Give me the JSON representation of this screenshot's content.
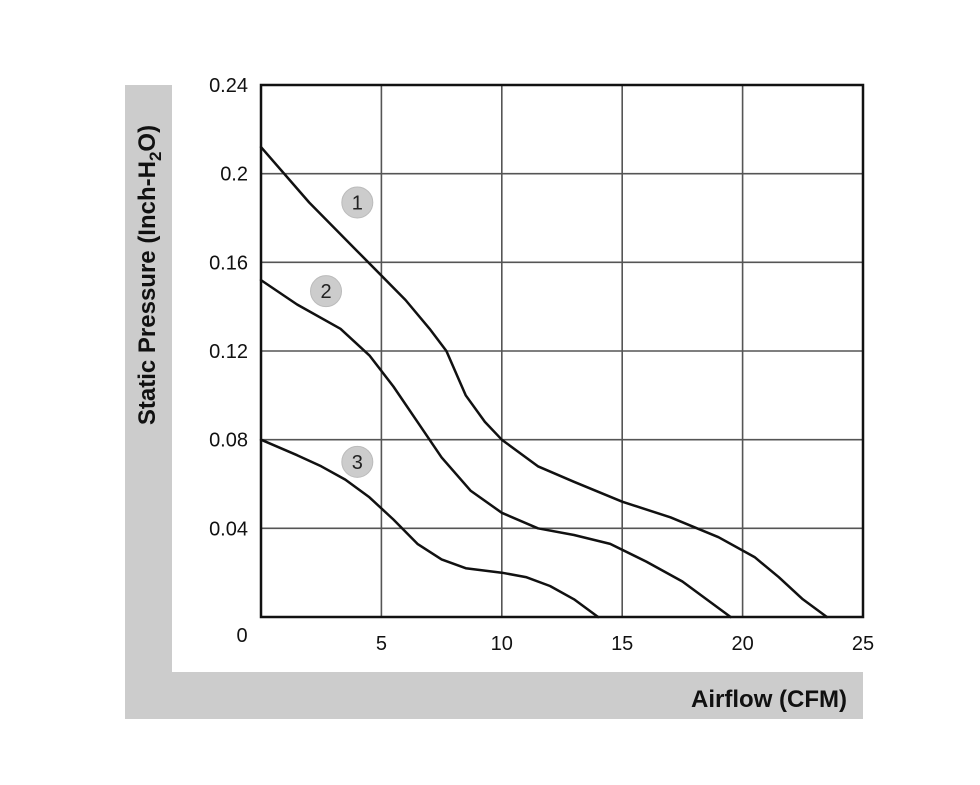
{
  "chart_data": {
    "type": "line",
    "title": "",
    "xlabel": "Airflow (CFM)",
    "ylabel_parts": {
      "before": "Static Pressure (Inch-H",
      "sub": "2",
      "after": "O)"
    },
    "xlim": [
      0,
      25
    ],
    "ylim": [
      0,
      0.24
    ],
    "grid": true,
    "x_ticks": [
      {
        "value": 5,
        "label": "5"
      },
      {
        "value": 10,
        "label": "10"
      },
      {
        "value": 15,
        "label": "15"
      },
      {
        "value": 20,
        "label": "20"
      },
      {
        "value": 25,
        "label": "25"
      }
    ],
    "y_ticks": [
      {
        "value": 0,
        "label": "0"
      },
      {
        "value": 0.04,
        "label": "0.04"
      },
      {
        "value": 0.08,
        "label": "0.08"
      },
      {
        "value": 0.12,
        "label": "0.12"
      },
      {
        "value": 0.16,
        "label": "0.16"
      },
      {
        "value": 0.2,
        "label": "0.2"
      },
      {
        "value": 0.24,
        "label": "0.24"
      }
    ],
    "series": [
      {
        "marker": "1",
        "marker_at": [
          4.0,
          0.187
        ],
        "points": [
          [
            0,
            0.212
          ],
          [
            2,
            0.187
          ],
          [
            4,
            0.165
          ],
          [
            6,
            0.143
          ],
          [
            7,
            0.13
          ],
          [
            7.7,
            0.12
          ],
          [
            8.5,
            0.1
          ],
          [
            9.3,
            0.088
          ],
          [
            10,
            0.08
          ],
          [
            11.5,
            0.068
          ],
          [
            13,
            0.061
          ],
          [
            15,
            0.052
          ],
          [
            17,
            0.045
          ],
          [
            19,
            0.036
          ],
          [
            20.5,
            0.027
          ],
          [
            21.5,
            0.018
          ],
          [
            22.5,
            0.008
          ],
          [
            23.5,
            0
          ]
        ]
      },
      {
        "marker": "2",
        "marker_at": [
          2.7,
          0.147
        ],
        "points": [
          [
            0,
            0.152
          ],
          [
            1.5,
            0.141
          ],
          [
            3.3,
            0.13
          ],
          [
            4.5,
            0.118
          ],
          [
            5.5,
            0.104
          ],
          [
            6.5,
            0.088
          ],
          [
            7.5,
            0.072
          ],
          [
            8.7,
            0.057
          ],
          [
            10,
            0.047
          ],
          [
            11.5,
            0.04
          ],
          [
            13,
            0.037
          ],
          [
            14.5,
            0.033
          ],
          [
            16,
            0.025
          ],
          [
            17.5,
            0.016
          ],
          [
            18.5,
            0.008
          ],
          [
            19.5,
            0
          ]
        ]
      },
      {
        "marker": "3",
        "marker_at": [
          4.0,
          0.07
        ],
        "points": [
          [
            0,
            0.08
          ],
          [
            1.5,
            0.073
          ],
          [
            2.5,
            0.068
          ],
          [
            3.5,
            0.062
          ],
          [
            4.5,
            0.054
          ],
          [
            5.5,
            0.044
          ],
          [
            6.5,
            0.033
          ],
          [
            7.5,
            0.026
          ],
          [
            8.5,
            0.022
          ],
          [
            10,
            0.02
          ],
          [
            11,
            0.018
          ],
          [
            12,
            0.014
          ],
          [
            13,
            0.008
          ],
          [
            14,
            0
          ]
        ]
      }
    ],
    "colors": {
      "curve": "#111111",
      "grid": "#555555",
      "frame": "#111111",
      "axis_band": "#cccccc",
      "marker_fill": "#cccccc"
    }
  }
}
